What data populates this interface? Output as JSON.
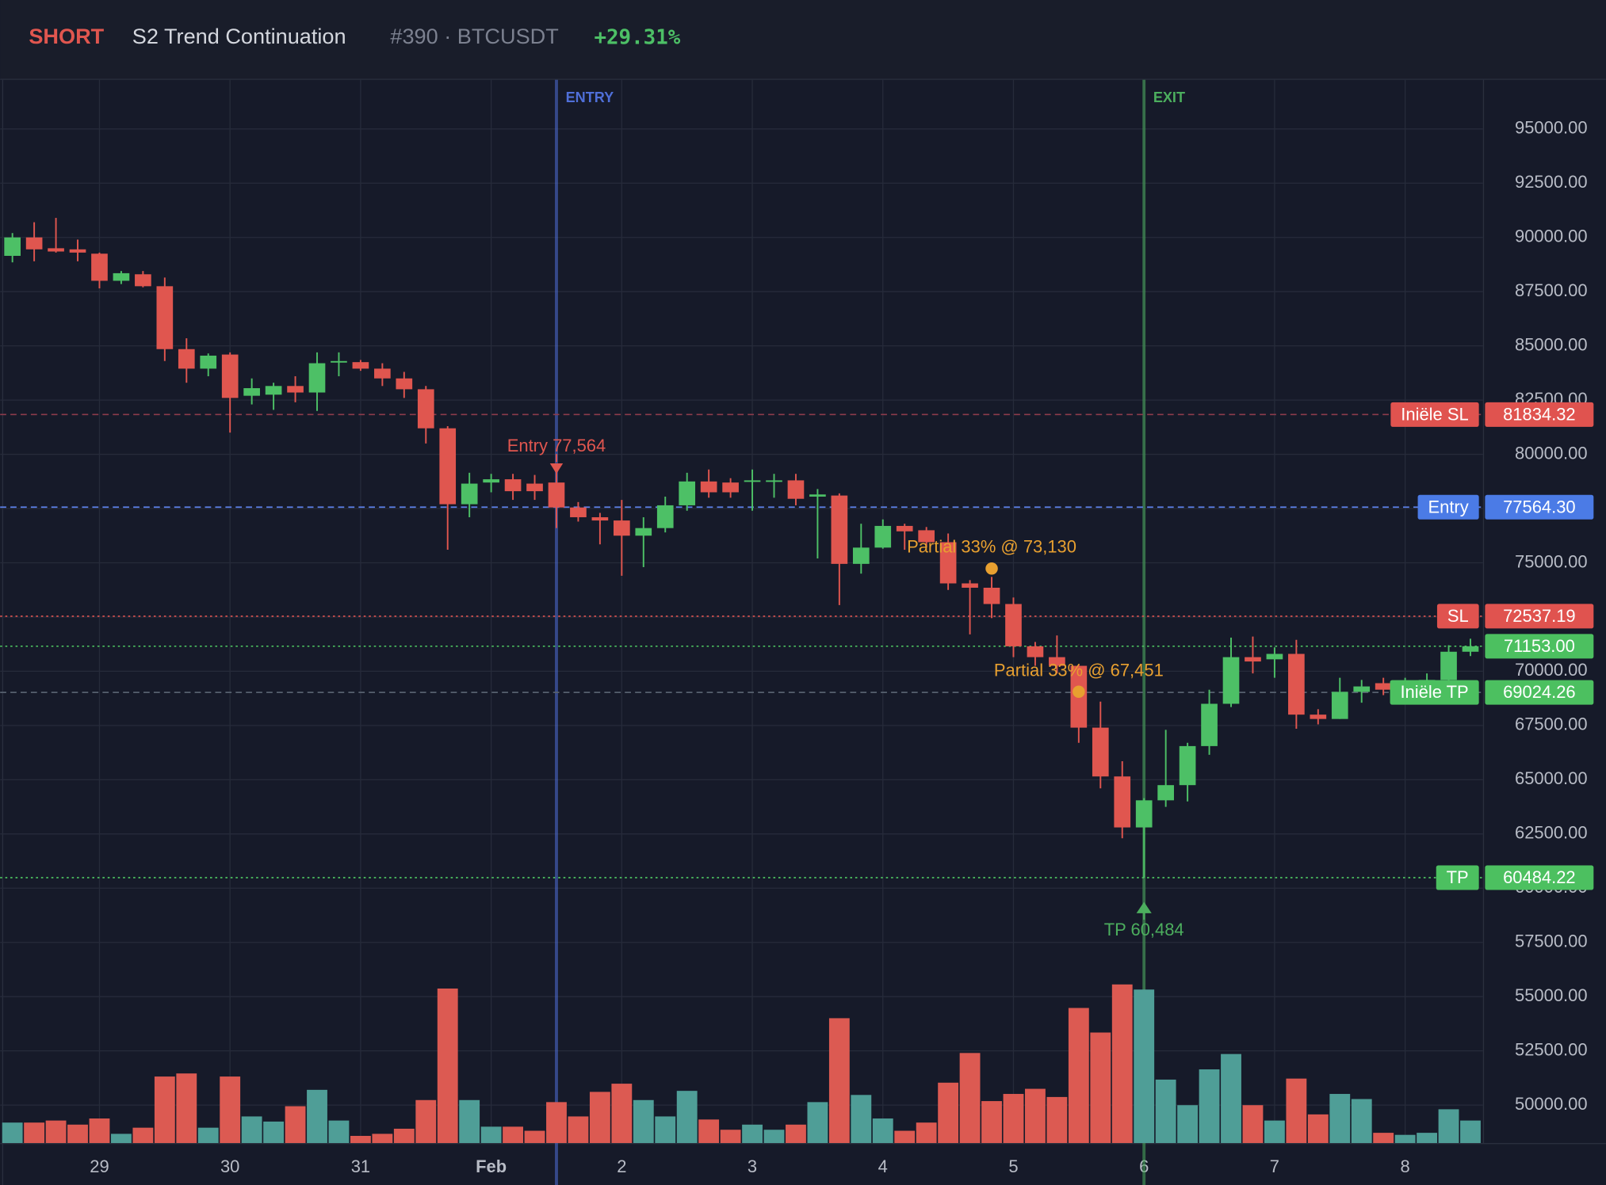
{
  "chart_data": {
    "type": "candlestick",
    "header": {
      "side": "SHORT",
      "strategy": "S2 Trend Continuation",
      "trade": "#390 · BTCUSDT",
      "pnl": "+29.31%"
    },
    "categories": [
      null,
      null,
      null,
      null,
      "29",
      null,
      null,
      null,
      null,
      null,
      "30",
      null,
      null,
      null,
      null,
      null,
      "31",
      null,
      null,
      null,
      null,
      null,
      "Feb",
      null,
      null,
      null,
      null,
      null,
      "2",
      null,
      null,
      null,
      null,
      null,
      "3",
      null,
      null,
      null,
      null,
      null,
      "4",
      null,
      null,
      null,
      null,
      null,
      "5",
      null,
      null,
      null,
      null,
      null,
      "6",
      null,
      null,
      null,
      null,
      null,
      "7",
      null,
      null,
      null,
      null,
      null,
      "8",
      null,
      null,
      null
    ],
    "open": [
      89150,
      90000,
      89500,
      89450,
      89250,
      88000,
      88300,
      87750,
      84850,
      83950,
      84600,
      82700,
      82750,
      83150,
      82850,
      84250,
      84250,
      83950,
      83500,
      83000,
      81200,
      77700,
      78700,
      78850,
      78650,
      78700,
      77550,
      77100,
      76950,
      76250,
      76600,
      77650,
      78750,
      78700,
      78750,
      78750,
      78800,
      78050,
      78100,
      74950,
      75700,
      76700,
      76500,
      75950,
      74050,
      73850,
      73100,
      71150,
      70650,
      70250,
      67400,
      65150,
      62800,
      64050,
      64750,
      66550,
      68500,
      70650,
      70550,
      70800,
      68000,
      67800,
      69050,
      69450,
      69150,
      69400,
      69600,
      70900
    ],
    "high": [
      90200,
      90700,
      90900,
      89900,
      89300,
      88450,
      88450,
      88150,
      85350,
      84650,
      84700,
      83500,
      83300,
      83600,
      84700,
      84700,
      84350,
      84200,
      83800,
      83150,
      81300,
      79150,
      79100,
      79100,
      79050,
      79200,
      77800,
      77300,
      77900,
      77100,
      78050,
      79150,
      79300,
      78900,
      79300,
      79100,
      79100,
      78400,
      78200,
      76800,
      77000,
      76800,
      76650,
      76350,
      74200,
      74350,
      73400,
      71350,
      71650,
      70300,
      68600,
      65850,
      64150,
      67300,
      66700,
      69150,
      71550,
      71600,
      71100,
      71450,
      68250,
      69700,
      69600,
      69700,
      69700,
      69900,
      71200,
      71500
    ],
    "low": [
      88850,
      88900,
      89300,
      88900,
      87650,
      87850,
      87700,
      84300,
      83300,
      83600,
      81000,
      82300,
      82050,
      82400,
      82000,
      83600,
      83850,
      83150,
      82600,
      80500,
      75600,
      77100,
      78250,
      77900,
      77900,
      76600,
      76900,
      75850,
      74400,
      74800,
      76400,
      77400,
      78000,
      78000,
      77400,
      78000,
      77650,
      75200,
      73050,
      74500,
      75650,
      75600,
      75700,
      73750,
      71700,
      72450,
      70650,
      70250,
      69900,
      66700,
      64600,
      62300,
      60484,
      63750,
      64000,
      66150,
      68350,
      69900,
      69700,
      67350,
      67550,
      67800,
      68550,
      68900,
      69000,
      69200,
      69400,
      70700
    ],
    "close": [
      90000,
      89450,
      89350,
      89300,
      88000,
      88350,
      87750,
      84850,
      83950,
      84550,
      82600,
      83050,
      83150,
      82850,
      84200,
      84300,
      83950,
      83500,
      83000,
      81200,
      77700,
      78650,
      78850,
      78300,
      78300,
      77550,
      77100,
      76950,
      76250,
      76600,
      77650,
      78750,
      78250,
      78250,
      78800,
      78800,
      77950,
      78150,
      74950,
      75700,
      76700,
      76450,
      75950,
      74050,
      73850,
      73100,
      71150,
      70650,
      70250,
      67400,
      65150,
      62800,
      64050,
      64750,
      66550,
      68500,
      70650,
      70450,
      70800,
      68000,
      67800,
      69050,
      69300,
      69150,
      69400,
      69600,
      70900,
      71153
    ],
    "volume": [
      20,
      20,
      22,
      18,
      24,
      9,
      15,
      65,
      68,
      15,
      65,
      26,
      21,
      36,
      52,
      22,
      7,
      9,
      14,
      42,
      151,
      42,
      16,
      16,
      12,
      40,
      26,
      50,
      58,
      42,
      26,
      51,
      23,
      13,
      18,
      13,
      18,
      40,
      122,
      47,
      24,
      12,
      20,
      59,
      88,
      41,
      48,
      53,
      45,
      132,
      108,
      155,
      150,
      62,
      37,
      72,
      87,
      37,
      22,
      63,
      28,
      48,
      43,
      10,
      8,
      10,
      33,
      22
    ],
    "colors": {
      "up": "#4dc066",
      "down": "#e0564f",
      "volume_up": "#4f9e97",
      "volume_down": "#dc5a52"
    },
    "ylim": [
      48250,
      97265
    ],
    "yticks": [
      {
        "value": 50000,
        "label": "50000.00"
      },
      {
        "value": 52500,
        "label": "52500.00"
      },
      {
        "value": 55000,
        "label": "55000.00"
      },
      {
        "value": 57500,
        "label": "57500.00"
      },
      {
        "value": 60000,
        "label": "60000.00"
      },
      {
        "value": 62500,
        "label": "62500.00"
      },
      {
        "value": 65000,
        "label": "65000.00"
      },
      {
        "value": 67500,
        "label": "67500.00"
      },
      {
        "value": 70000,
        "label": "70000.00"
      },
      {
        "value": 72500,
        "label": "72500.00"
      },
      {
        "value": 75000,
        "label": "75000.00"
      },
      {
        "value": 77500,
        "label": "77500.00"
      },
      {
        "value": 80000,
        "label": "80000.00"
      },
      {
        "value": 82500,
        "label": "82500.00"
      },
      {
        "value": 85000,
        "label": "85000.00"
      },
      {
        "value": 87500,
        "label": "87500.00"
      },
      {
        "value": 90000,
        "label": "90000.00"
      },
      {
        "value": 92500,
        "label": "92500.00"
      },
      {
        "value": 95000,
        "label": "95000.00"
      }
    ],
    "grid": true,
    "vlines": [
      {
        "label": "ENTRY",
        "index": 25,
        "color": "#4f6fd8"
      },
      {
        "label": "EXIT",
        "index": 52,
        "color": "#4cae5e"
      }
    ],
    "levels": [
      {
        "name": "Iniële SL",
        "value": 81834.32,
        "label": "81834.32",
        "color": "#e0534f",
        "line": "#8c3b4c",
        "style": "dashed"
      },
      {
        "name": "Entry",
        "value": 77564.3,
        "label": "77564.30",
        "color": "#4b7be6",
        "line": "#5c80e8",
        "style": "dashed"
      },
      {
        "name": "SL",
        "value": 72537.19,
        "label": "72537.19",
        "color": "#e0534f",
        "line": "#e0534f",
        "style": "dotted"
      },
      {
        "value": 71153,
        "label": "71153.00",
        "color": "#4cc060",
        "line": "#4cc060",
        "style": "dotted"
      },
      {
        "name": "Iniële TP",
        "value": 69024.26,
        "label": "69024.26",
        "color": "#4cc060",
        "line": "#56606e",
        "style": "dashed"
      },
      {
        "name": "TP",
        "value": 60484.22,
        "label": "60484.22",
        "color": "#4cc060",
        "line": "#4cc060",
        "style": "dotted"
      }
    ],
    "annotations": [
      {
        "text": "Entry 77,564",
        "index": 25,
        "value": 77564,
        "marker": "arrow-down",
        "color": "#e0564f"
      },
      {
        "text": "Partial 33% @ 73,130",
        "index": 45,
        "value": 73130,
        "marker": "dot",
        "color": "#e8a030"
      },
      {
        "text": "Partial 33% @ 67,451",
        "index": 49,
        "value": 67451,
        "marker": "dot",
        "color": "#e8a030"
      },
      {
        "text": "TP 60,484",
        "index": 52,
        "value": 60484,
        "marker": "arrow-up",
        "color": "#4cae5e"
      }
    ]
  }
}
